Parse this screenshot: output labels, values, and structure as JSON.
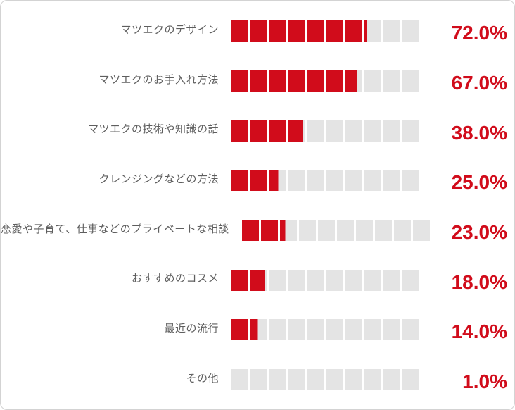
{
  "chart_data": {
    "type": "bar",
    "orientation": "horizontal",
    "style": "segmented-blocks",
    "segments_per_bar": 10,
    "categories": [
      "マツエクのデザイン",
      "マツエクのお手入れ方法",
      "マツエクの技術や知識の話",
      "クレンジングなどの方法",
      "恋愛や子育て、仕事などのプライベートな相談",
      "おすすめのコスメ",
      "最近の流行",
      "その他"
    ],
    "values": [
      72.0,
      67.0,
      38.0,
      25.0,
      23.0,
      18.0,
      14.0,
      1.0
    ],
    "value_labels": [
      "72.0%",
      "67.0%",
      "38.0%",
      "25.0%",
      "23.0%",
      "18.0%",
      "14.0%",
      "1.0%"
    ],
    "xlim": [
      0,
      100
    ],
    "grid": false,
    "legend": false,
    "title": "",
    "colors": {
      "fill": "#d10c1b",
      "track": "#e4e4e4",
      "value_text": "#d10c1b",
      "category_text": "#5e5e5e"
    }
  }
}
